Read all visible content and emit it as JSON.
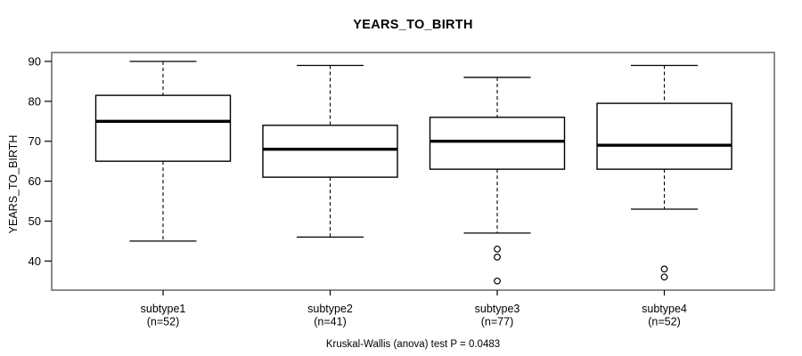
{
  "colors": {
    "background": "#ffffff",
    "frame": "#666666",
    "box_border": "#000000",
    "median": "#000000",
    "whisker": "#000000",
    "text": "#000000"
  },
  "chart_data": {
    "type": "boxplot",
    "title": "YEARS_TO_BIRTH",
    "ylabel": "YEARS_TO_BIRTH",
    "xlabel": "",
    "annotation": "Kruskal-Wallis (anova) test P = 0.0483",
    "grid": false,
    "yticks": [
      40,
      50,
      60,
      70,
      80,
      90
    ],
    "ylim": [
      33,
      92
    ],
    "categories": [
      "subtype1",
      "subtype2",
      "subtype3",
      "subtype4"
    ],
    "category_sublabels": [
      "(n=52)",
      "(n=41)",
      "(n=77)",
      "(n=52)"
    ],
    "sample_sizes": [
      52,
      41,
      77,
      52
    ],
    "series": [
      {
        "name": "subtype1",
        "n": 52,
        "whisker_low": 45,
        "q1": 65,
        "median": 75,
        "q3": 81.5,
        "whisker_high": 90,
        "outliers": []
      },
      {
        "name": "subtype2",
        "n": 41,
        "whisker_low": 46,
        "q1": 61,
        "median": 68,
        "q3": 74,
        "whisker_high": 89,
        "outliers": []
      },
      {
        "name": "subtype3",
        "n": 77,
        "whisker_low": 47,
        "q1": 63,
        "median": 70,
        "q3": 76,
        "whisker_high": 86,
        "outliers": [
          43,
          41,
          35
        ]
      },
      {
        "name": "subtype4",
        "n": 52,
        "whisker_low": 53,
        "q1": 63,
        "median": 69,
        "q3": 79.5,
        "whisker_high": 89,
        "outliers": [
          38,
          36
        ]
      }
    ]
  }
}
